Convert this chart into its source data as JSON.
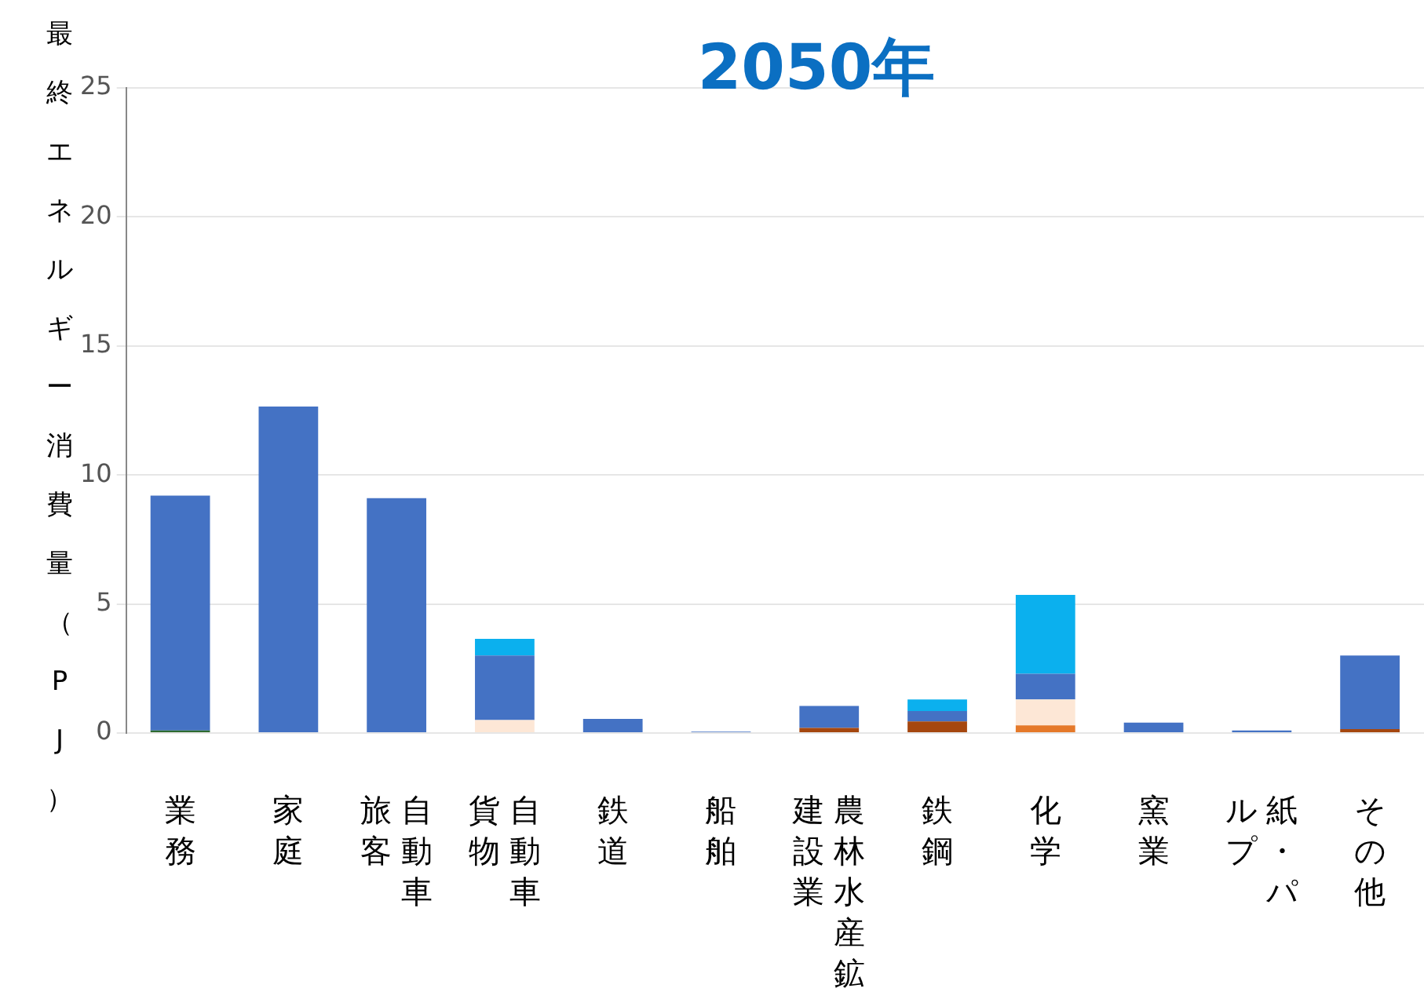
{
  "chart_data": {
    "type": "bar",
    "title": "2050年",
    "ylabel": "最終エネルギー消費量（PJ）",
    "stacked": true,
    "grid": "y",
    "legend": false,
    "categories": [
      "業務",
      "家庭",
      "自動車旅客",
      "自動車貨物",
      "鉄道",
      "船舶",
      "農林水産鉱建設業",
      "鉄鋼",
      "化学",
      "窯業",
      "紙・パルプ",
      "その他"
    ],
    "series": [
      {
        "color": "#2e6b30",
        "values": [
          0.1,
          null,
          null,
          null,
          null,
          null,
          null,
          null,
          null,
          null,
          null,
          null
        ]
      },
      {
        "color": "#a5470f",
        "values": [
          null,
          null,
          null,
          null,
          null,
          null,
          0.2,
          0.45,
          null,
          null,
          null,
          0.15
        ]
      },
      {
        "color": "#e5792a",
        "values": [
          null,
          null,
          null,
          null,
          null,
          null,
          null,
          null,
          0.3,
          null,
          null,
          null
        ]
      },
      {
        "color": "#fde7d6",
        "values": [
          null,
          null,
          null,
          0.5,
          null,
          null,
          null,
          null,
          1.0,
          null,
          null,
          null
        ]
      },
      {
        "color": "#4472c4",
        "values": [
          9.1,
          12.65,
          9.1,
          2.5,
          0.55,
          0.05,
          0.85,
          0.4,
          1.0,
          0.4,
          0.1,
          2.85
        ]
      },
      {
        "color": "#0bb0ee",
        "values": [
          null,
          null,
          null,
          0.65,
          null,
          null,
          null,
          0.45,
          3.05,
          null,
          null,
          null
        ]
      }
    ],
    "ylim": [
      0,
      25
    ],
    "yticks": [
      0,
      5,
      10,
      15,
      20,
      25
    ]
  }
}
